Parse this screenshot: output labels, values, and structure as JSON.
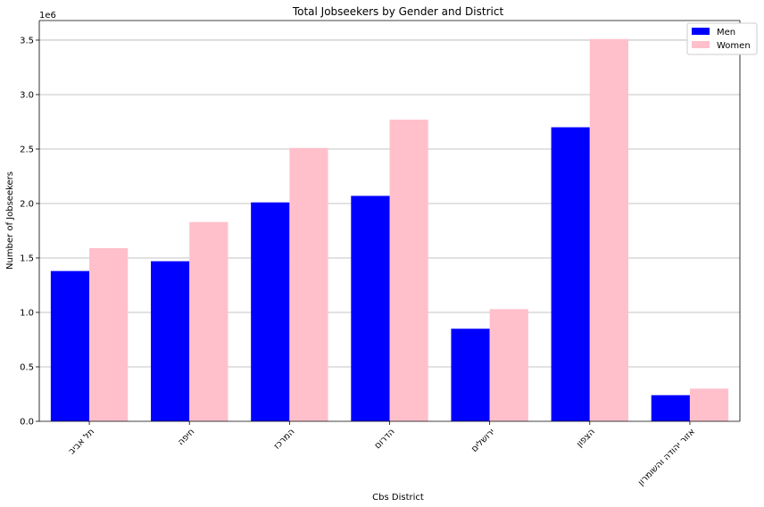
{
  "chart_data": {
    "type": "bar",
    "title": "Total Jobseekers by Gender and District",
    "xlabel": "Cbs District",
    "ylabel": "Number of Jobseekers",
    "offset_text": "1e6",
    "categories": [
      "תל אביב",
      "חיפה",
      "המרכז",
      "הדרום",
      "ירושלים",
      "הצפון",
      "אזור יהודה והשומרון"
    ],
    "series": [
      {
        "name": "Men",
        "color": "#0000ff",
        "values": [
          1.38,
          1.47,
          2.01,
          2.07,
          0.85,
          2.7,
          0.24
        ]
      },
      {
        "name": "Women",
        "color": "#ffc0cb",
        "values": [
          1.59,
          1.83,
          2.51,
          2.77,
          1.03,
          3.51,
          0.3
        ]
      }
    ],
    "value_multiplier": 1000000,
    "ylim": [
      0,
      3.68
    ],
    "yticks": [
      0.0,
      0.5,
      1.0,
      1.5,
      2.0,
      2.5,
      3.0,
      3.5
    ],
    "ytick_labels": [
      "0.0",
      "0.5",
      "1.0",
      "1.5",
      "2.0",
      "2.5",
      "3.0",
      "3.5"
    ],
    "grid": "y",
    "legend_position": "top-right",
    "xtick_rotation": "45"
  }
}
